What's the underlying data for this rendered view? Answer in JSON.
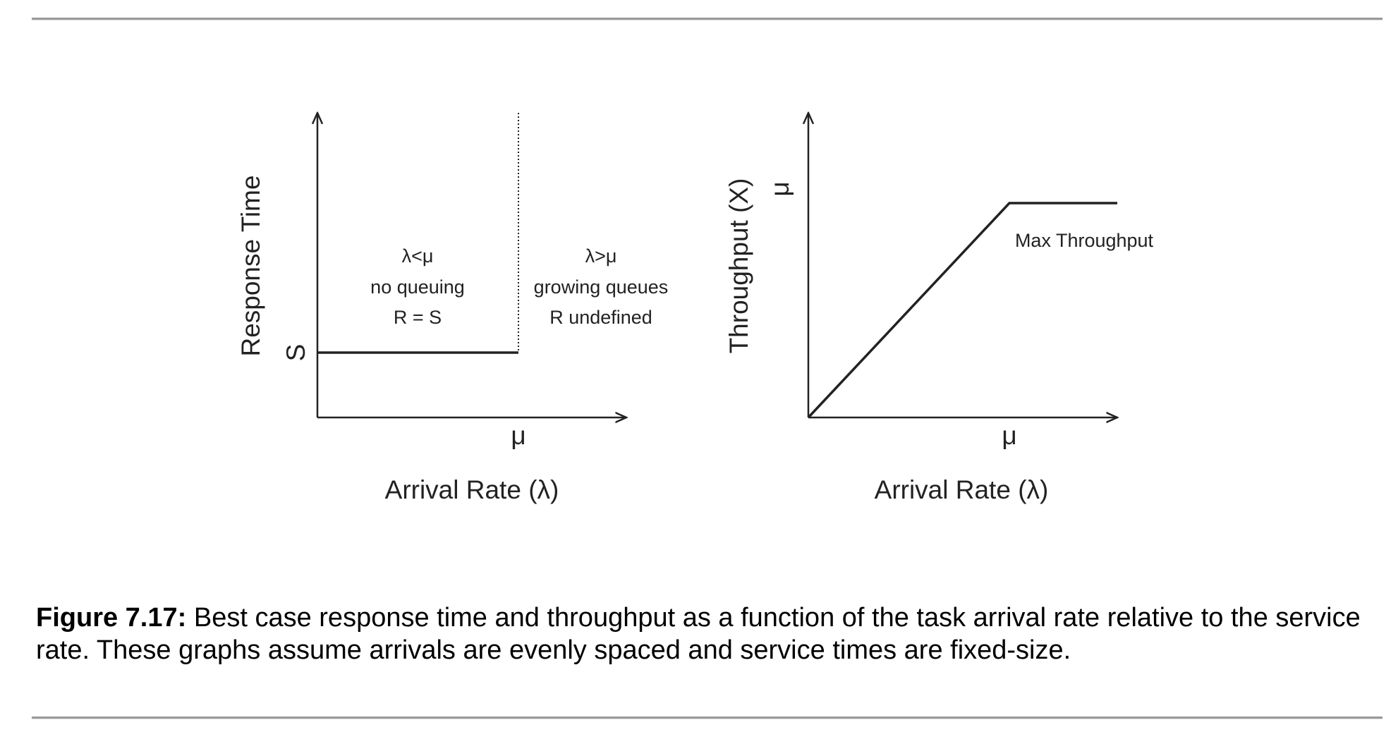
{
  "chart_data": [
    {
      "type": "line",
      "ylabel": "Response Time",
      "xlabel": "Arrival Rate (λ)",
      "x_ticks": [
        "μ"
      ],
      "y_ticks": [
        "S"
      ],
      "series": [
        {
          "x": [
            "0",
            "μ"
          ],
          "y": [
            "S",
            "S"
          ]
        }
      ],
      "divider_at": "μ",
      "annotations": {
        "left_region": [
          "λ<μ",
          "no queuing",
          "R = S"
        ],
        "right_region": [
          "λ>μ",
          "growing queues",
          "R undefined"
        ]
      },
      "grid": false
    },
    {
      "type": "line",
      "ylabel": "Throughput (X)",
      "xlabel": "Arrival Rate (λ)",
      "x_ticks": [
        "μ"
      ],
      "y_ticks": [
        "μ"
      ],
      "series": [
        {
          "x": [
            "0",
            "μ",
            "beyond μ"
          ],
          "y": [
            "0",
            "μ",
            "μ"
          ]
        }
      ],
      "annotations": {
        "plateau_label": "Max Throughput"
      },
      "grid": false
    }
  ],
  "caption": {
    "label": "Figure 7.17:",
    "text": " Best case response time and throughput as a function of the task arrival rate relative to the service rate. These graphs assume arrivals are evenly spaced and service times are fixed-size."
  },
  "colors": {
    "ink": "#222222",
    "rule": "#9a9a9a"
  }
}
